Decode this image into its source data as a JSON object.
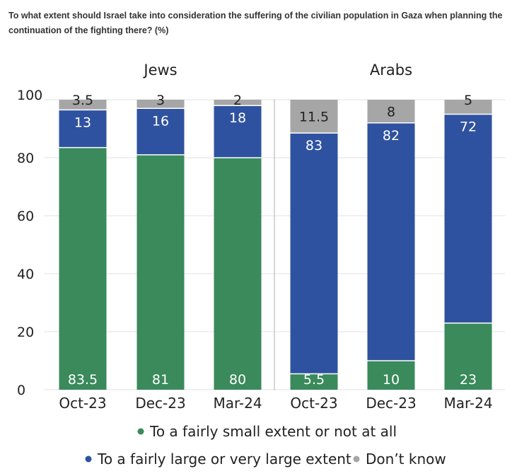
{
  "title": "To what extent should Israel take into consideration the suffering of the civilian population in Gaza when planning the continuation of the fighting there? (%)",
  "chart_data": {
    "type": "bar",
    "stacked": true,
    "ylim": [
      0,
      100
    ],
    "yticks": [
      0,
      20,
      40,
      60,
      80,
      100
    ],
    "grid": true,
    "legend_position": "bottom",
    "groups": [
      {
        "name": "Jews",
        "categories": [
          "Oct-23",
          "Dec-23",
          "Mar-24"
        ],
        "series": [
          {
            "name": "To a fairly small extent or not at all",
            "values": [
              83.5,
              81,
              80
            ]
          },
          {
            "name": "To a fairly large or very large extent",
            "values": [
              13,
              16,
              18
            ]
          },
          {
            "name": "Don’t know",
            "values": [
              3.5,
              3,
              2
            ]
          }
        ]
      },
      {
        "name": "Arabs",
        "categories": [
          "Oct-23",
          "Dec-23",
          "Mar-24"
        ],
        "series": [
          {
            "name": "To a fairly small extent or not at all",
            "values": [
              5.5,
              10,
              23
            ]
          },
          {
            "name": "To a fairly large or very large extent",
            "values": [
              83,
              82,
              72
            ]
          },
          {
            "name": "Don’t know",
            "values": [
              11.5,
              8,
              5
            ]
          }
        ]
      }
    ],
    "colors": [
      "#3a8a5b",
      "#2f52a0",
      "#a6a6a6"
    ],
    "label_colors": [
      "#ffffff",
      "#ffffff",
      "#222222"
    ]
  }
}
